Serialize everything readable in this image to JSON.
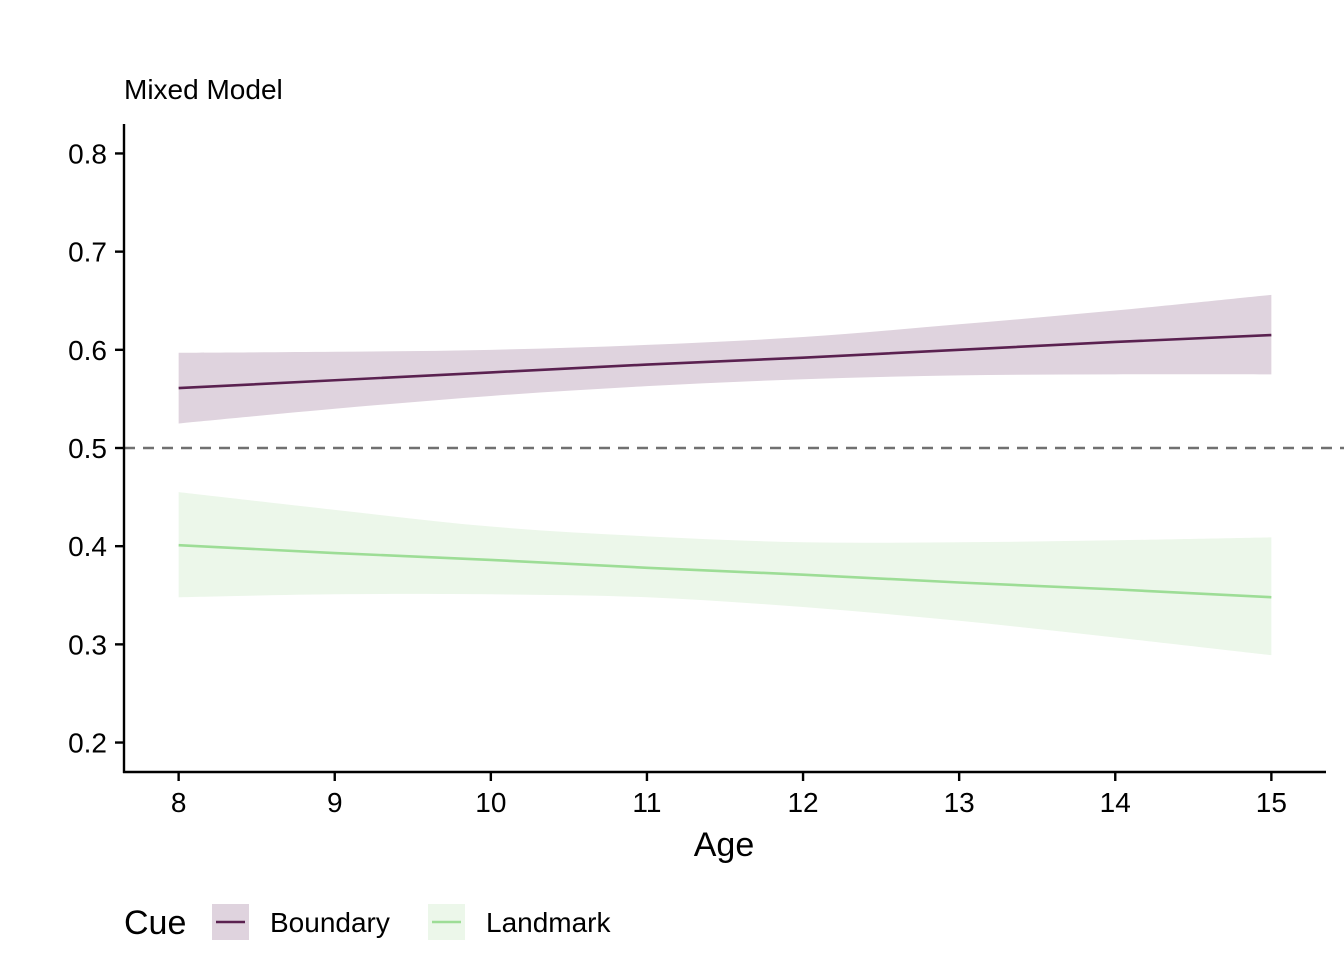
{
  "chart_data": {
    "type": "line",
    "title": "Mixed Model",
    "xlabel": "Age",
    "ylabel": "",
    "xlim": [
      7.65,
      15.35
    ],
    "ylim": [
      0.17,
      0.83
    ],
    "xticks": [
      8,
      9,
      10,
      11,
      12,
      13,
      14,
      15
    ],
    "yticks": [
      0.2,
      0.3,
      0.4,
      0.5,
      0.6,
      0.7,
      0.8
    ],
    "reference_line": {
      "y": 0.5,
      "style": "dashed",
      "color": "#707070"
    },
    "grid": false,
    "legend": {
      "title": "Cue",
      "position": "bottom-left"
    },
    "series": [
      {
        "name": "Boundary",
        "color": "#5a2150",
        "band_color": "#dfd3de",
        "x": [
          8,
          9,
          10,
          11,
          12,
          13,
          14,
          15
        ],
        "y": [
          0.561,
          0.569,
          0.577,
          0.585,
          0.592,
          0.6,
          0.608,
          0.615
        ],
        "lower": [
          0.525,
          0.54,
          0.553,
          0.563,
          0.57,
          0.574,
          0.575,
          0.575
        ],
        "upper": [
          0.597,
          0.598,
          0.6,
          0.605,
          0.613,
          0.626,
          0.64,
          0.656
        ]
      },
      {
        "name": "Landmark",
        "color": "#9ddd96",
        "band_color": "#ecf7ea",
        "x": [
          8,
          9,
          10,
          11,
          12,
          13,
          14,
          15
        ],
        "y": [
          0.401,
          0.393,
          0.386,
          0.378,
          0.371,
          0.363,
          0.356,
          0.348
        ],
        "lower": [
          0.348,
          0.351,
          0.351,
          0.348,
          0.338,
          0.324,
          0.307,
          0.289
        ],
        "upper": [
          0.455,
          0.437,
          0.42,
          0.41,
          0.404,
          0.404,
          0.406,
          0.409
        ]
      }
    ]
  }
}
